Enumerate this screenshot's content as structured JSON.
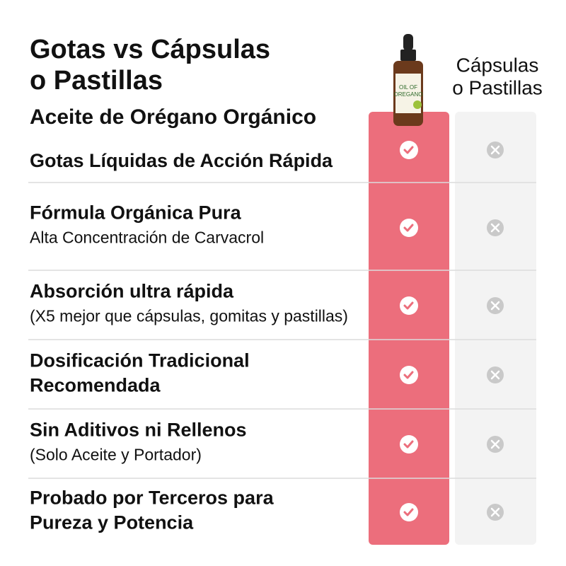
{
  "header": {
    "title_lines": [
      "Gotas vs Cápsulas",
      "o Pastillas"
    ],
    "subtitle": "Aceite de Orégano Orgánico"
  },
  "columns": {
    "comparison": [
      "Cápsulas",
      "o Pastillas"
    ]
  },
  "product": {
    "label_lines": [
      "OIL OF",
      "OREGANO"
    ]
  },
  "rows": [
    {
      "title": [
        "Gotas Líquidas de Acción Rápida"
      ]
    },
    {
      "title": [
        "Fórmula Orgánica Pura"
      ],
      "subtitle": "Alta Concentración de Carvacrol"
    },
    {
      "title": [
        "Absorción ultra rápida"
      ],
      "subtitle": "(X5 mejor que cápsulas, gomitas y pastillas)"
    },
    {
      "title": [
        "Dosificación Tradicional",
        "Recomendada"
      ]
    },
    {
      "title": [
        "Sin Aditivos ni Rellenos"
      ],
      "subtitle": "(Solo Aceite y Portador)"
    },
    {
      "title": [
        "Probado por Terceros para",
        "Pureza y Potencia"
      ]
    }
  ]
}
